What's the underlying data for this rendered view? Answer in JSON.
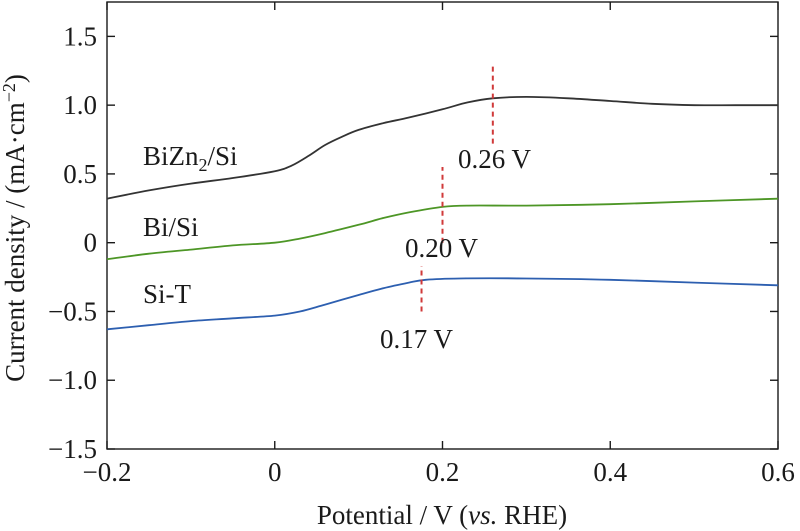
{
  "chart_data": {
    "type": "line",
    "xlabel_main": "Potential / V (",
    "xlabel_italic": "vs.",
    "xlabel_tail": " RHE)",
    "ylabel_main": "Current density / (mA·cm",
    "ylabel_sup": "−2",
    "ylabel_tail": ")",
    "xlim": [
      -0.2,
      0.6
    ],
    "ylim": [
      -1.5,
      1.75
    ],
    "x_ticks": [
      {
        "value": -0.2,
        "label": "−0.2"
      },
      {
        "value": 0,
        "label": "0"
      },
      {
        "value": 0.2,
        "label": "0.2"
      },
      {
        "value": 0.4,
        "label": "0.4"
      },
      {
        "value": 0.6,
        "label": "0.6"
      }
    ],
    "y_ticks": [
      {
        "value": -1.5,
        "label": "−1.5"
      },
      {
        "value": -1.0,
        "label": "−1.0"
      },
      {
        "value": -0.5,
        "label": "−0.5"
      },
      {
        "value": 0,
        "label": "0"
      },
      {
        "value": 0.5,
        "label": "0.5"
      },
      {
        "value": 1.0,
        "label": "1.0"
      },
      {
        "value": 1.5,
        "label": "1.5"
      }
    ],
    "grid": false,
    "series": [
      {
        "name_main": "BiZn",
        "name_sub": "2",
        "name_tail": "/Si",
        "color": "#333333",
        "points": [
          [
            -0.2,
            0.32
          ],
          [
            -0.15,
            0.38
          ],
          [
            -0.1,
            0.43
          ],
          [
            -0.05,
            0.47
          ],
          [
            0.0,
            0.52
          ],
          [
            0.02,
            0.56
          ],
          [
            0.04,
            0.63
          ],
          [
            0.06,
            0.71
          ],
          [
            0.08,
            0.77
          ],
          [
            0.1,
            0.82
          ],
          [
            0.13,
            0.87
          ],
          [
            0.16,
            0.91
          ],
          [
            0.2,
            0.97
          ],
          [
            0.23,
            1.02
          ],
          [
            0.26,
            1.05
          ],
          [
            0.3,
            1.06
          ],
          [
            0.35,
            1.05
          ],
          [
            0.4,
            1.03
          ],
          [
            0.45,
            1.01
          ],
          [
            0.5,
            1.0
          ],
          [
            0.55,
            1.0
          ],
          [
            0.6,
            1.0
          ]
        ],
        "peak": {
          "x": 0.26,
          "y_bottom": 0.72,
          "y_top": 1.28,
          "label": "0.26 V"
        }
      },
      {
        "name_main": "Bi/Si",
        "name_sub": "",
        "name_tail": "",
        "color": "#4d9626",
        "points": [
          [
            -0.2,
            -0.12
          ],
          [
            -0.15,
            -0.08
          ],
          [
            -0.1,
            -0.05
          ],
          [
            -0.05,
            -0.02
          ],
          [
            0.0,
            0.0
          ],
          [
            0.03,
            0.03
          ],
          [
            0.06,
            0.07
          ],
          [
            0.1,
            0.13
          ],
          [
            0.13,
            0.18
          ],
          [
            0.16,
            0.22
          ],
          [
            0.2,
            0.26
          ],
          [
            0.23,
            0.27
          ],
          [
            0.3,
            0.27
          ],
          [
            0.4,
            0.28
          ],
          [
            0.5,
            0.3
          ],
          [
            0.6,
            0.32
          ]
        ],
        "peak": {
          "x": 0.2,
          "y_bottom": 0.0,
          "y_top": 0.55,
          "label": "0.20 V"
        }
      },
      {
        "name_main": "Si-T",
        "name_sub": "",
        "name_tail": "",
        "color": "#2d5fb0",
        "points": [
          [
            -0.2,
            -0.63
          ],
          [
            -0.15,
            -0.6
          ],
          [
            -0.1,
            -0.57
          ],
          [
            -0.05,
            -0.55
          ],
          [
            0.0,
            -0.53
          ],
          [
            0.03,
            -0.5
          ],
          [
            0.06,
            -0.45
          ],
          [
            0.1,
            -0.38
          ],
          [
            0.13,
            -0.33
          ],
          [
            0.16,
            -0.29
          ],
          [
            0.18,
            -0.27
          ],
          [
            0.22,
            -0.26
          ],
          [
            0.3,
            -0.26
          ],
          [
            0.4,
            -0.27
          ],
          [
            0.5,
            -0.29
          ],
          [
            0.6,
            -0.31
          ]
        ],
        "peak": {
          "x": 0.175,
          "y_bottom": -0.5,
          "y_top": -0.17,
          "label": "0.17 V"
        }
      }
    ]
  }
}
